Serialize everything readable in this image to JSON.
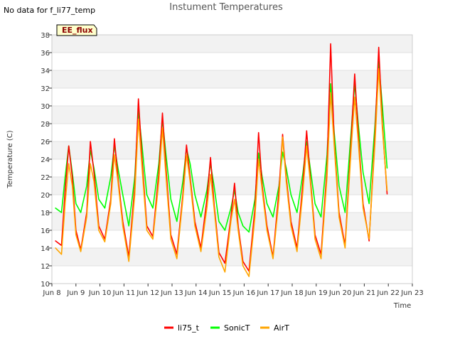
{
  "header": {
    "note": "No data for f_li77_temp"
  },
  "chart_data": {
    "type": "line",
    "title": "Instument Temperatures",
    "xlabel": "Time",
    "ylabel": "Temperature (C)",
    "ylim": [
      10,
      38
    ],
    "xlim": [
      8,
      23
    ],
    "y_ticks": [
      10,
      12,
      14,
      16,
      18,
      20,
      22,
      24,
      26,
      28,
      30,
      32,
      34,
      36,
      38
    ],
    "x_ticks": [
      {
        "value": 8,
        "label": "Jun 8"
      },
      {
        "value": 9,
        "label": "Jun 9"
      },
      {
        "value": 10,
        "label": "Jun 10"
      },
      {
        "value": 11,
        "label": "Jun 11"
      },
      {
        "value": 12,
        "label": "Jun 12"
      },
      {
        "value": 13,
        "label": "Jun 13"
      },
      {
        "value": 14,
        "label": "Jun 14"
      },
      {
        "value": 15,
        "label": "Jun 15"
      },
      {
        "value": 16,
        "label": "Jun 16"
      },
      {
        "value": 17,
        "label": "Jun 17"
      },
      {
        "value": 18,
        "label": "Jun 18"
      },
      {
        "value": 19,
        "label": "Jun 19"
      },
      {
        "value": 20,
        "label": "Jun 20"
      },
      {
        "value": 21,
        "label": "Jun 21"
      },
      {
        "value": 22,
        "label": "Jun 22"
      },
      {
        "value": 23,
        "label": "Jun 23"
      }
    ],
    "annotation": "EE_flux",
    "legend_position": "bottom-center",
    "series": [
      {
        "name": "li75_t",
        "color": "#ff0000",
        "x": [
          8.15,
          8.4,
          8.55,
          8.7,
          8.85,
          9.0,
          9.2,
          9.45,
          9.6,
          9.75,
          9.95,
          10.2,
          10.45,
          10.6,
          10.75,
          10.95,
          11.2,
          11.45,
          11.6,
          11.75,
          11.95,
          12.2,
          12.45,
          12.6,
          12.75,
          12.95,
          13.2,
          13.45,
          13.6,
          13.75,
          13.95,
          14.2,
          14.45,
          14.6,
          14.75,
          14.95,
          15.2,
          15.45,
          15.6,
          15.75,
          15.95,
          16.2,
          16.45,
          16.6,
          16.75,
          16.95,
          17.2,
          17.45,
          17.6,
          17.75,
          17.95,
          18.2,
          18.45,
          18.6,
          18.75,
          18.95,
          19.2,
          19.45,
          19.6,
          19.75,
          19.95,
          20.2,
          20.45,
          20.6,
          20.75,
          20.95,
          21.2,
          21.45,
          21.6,
          21.75,
          21.95
        ],
        "values": [
          14.8,
          14.3,
          20.5,
          25.5,
          22.0,
          16.0,
          13.8,
          18.0,
          26.0,
          22.5,
          16.5,
          15.0,
          19.5,
          26.3,
          22.0,
          17.0,
          13.0,
          21.0,
          30.8,
          24.0,
          16.5,
          15.3,
          22.5,
          29.2,
          23.0,
          15.5,
          13.3,
          20.0,
          25.6,
          22.0,
          17.0,
          14.0,
          19.5,
          24.2,
          19.0,
          13.5,
          12.3,
          17.5,
          21.3,
          16.5,
          12.5,
          11.4,
          18.5,
          27.0,
          21.0,
          16.5,
          13.0,
          20.5,
          26.8,
          22.0,
          17.0,
          14.0,
          21.5,
          27.2,
          22.0,
          15.5,
          13.3,
          23.0,
          37.0,
          26.0,
          18.0,
          14.3,
          26.0,
          33.6,
          27.0,
          19.0,
          14.8,
          27.0,
          36.6,
          28.0,
          20.1
        ]
      },
      {
        "name": "SonicT",
        "color": "#00ff00",
        "x": [
          8.15,
          8.4,
          8.55,
          8.7,
          8.85,
          9.0,
          9.2,
          9.45,
          9.6,
          9.75,
          9.95,
          10.2,
          10.45,
          10.6,
          10.75,
          10.95,
          11.2,
          11.45,
          11.6,
          11.75,
          11.95,
          12.2,
          12.45,
          12.6,
          12.75,
          12.95,
          13.2,
          13.45,
          13.6,
          13.75,
          13.95,
          14.2,
          14.45,
          14.6,
          14.75,
          14.95,
          15.2,
          15.45,
          15.6,
          15.75,
          15.95,
          16.2,
          16.45,
          16.6,
          16.75,
          16.95,
          17.2,
          17.45,
          17.6,
          17.75,
          17.95,
          18.2,
          18.45,
          18.6,
          18.75,
          18.95,
          19.2,
          19.45,
          19.6,
          19.75,
          19.95,
          20.2,
          20.45,
          20.6,
          20.75,
          20.95,
          21.2,
          21.45,
          21.6,
          21.75,
          21.95
        ],
        "values": [
          18.5,
          18.0,
          22.0,
          25.5,
          22.5,
          19.0,
          18.0,
          21.0,
          25.0,
          23.0,
          19.5,
          18.5,
          22.0,
          25.5,
          23.0,
          20.0,
          16.5,
          22.0,
          29.5,
          25.5,
          20.0,
          18.5,
          23.5,
          28.5,
          24.5,
          19.5,
          17.0,
          21.5,
          25.2,
          23.5,
          20.0,
          17.5,
          20.5,
          23.5,
          21.0,
          17.0,
          16.0,
          18.5,
          20.5,
          18.0,
          16.5,
          15.8,
          19.5,
          24.7,
          22.0,
          19.0,
          17.5,
          21.0,
          24.8,
          23.0,
          20.0,
          18.0,
          22.5,
          26.0,
          23.0,
          19.0,
          17.5,
          24.5,
          32.5,
          27.0,
          21.0,
          18.0,
          27.0,
          32.5,
          28.0,
          22.5,
          19.0,
          28.0,
          35.0,
          30.0,
          23.0
        ]
      },
      {
        "name": "AirT",
        "color": "#ffa500",
        "x": [
          8.15,
          8.4,
          8.55,
          8.7,
          8.85,
          9.0,
          9.2,
          9.45,
          9.6,
          9.75,
          9.95,
          10.2,
          10.45,
          10.6,
          10.75,
          10.95,
          11.2,
          11.45,
          11.6,
          11.75,
          11.95,
          12.2,
          12.45,
          12.6,
          12.75,
          12.95,
          13.2,
          13.45,
          13.6,
          13.75,
          13.95,
          14.2,
          14.45,
          14.6,
          14.75,
          14.95,
          15.2,
          15.45,
          15.6,
          15.75,
          15.95,
          16.2,
          16.45,
          16.6,
          16.75,
          16.95,
          17.2,
          17.45,
          17.6,
          17.75,
          17.95,
          18.2,
          18.45,
          18.6,
          18.75,
          18.95,
          19.2,
          19.45,
          19.6,
          19.75,
          19.95,
          20.2,
          20.45,
          20.6,
          20.75,
          20.95,
          21.2,
          21.45,
          21.6,
          21.75,
          21.95
        ],
        "values": [
          14.0,
          13.3,
          19.0,
          23.5,
          21.0,
          15.5,
          13.6,
          17.5,
          23.5,
          21.5,
          16.0,
          14.7,
          19.0,
          24.5,
          21.5,
          16.5,
          12.5,
          20.0,
          28.5,
          23.0,
          16.0,
          15.0,
          21.5,
          27.5,
          22.0,
          15.0,
          12.8,
          19.5,
          24.5,
          21.5,
          16.5,
          13.6,
          18.5,
          22.3,
          18.5,
          13.0,
          11.3,
          17.0,
          19.5,
          16.0,
          12.0,
          10.8,
          17.5,
          24.0,
          20.5,
          16.0,
          12.8,
          19.5,
          26.5,
          21.5,
          16.5,
          13.6,
          20.5,
          25.5,
          21.5,
          15.0,
          12.8,
          22.0,
          31.5,
          25.5,
          17.5,
          14.0,
          25.0,
          31.0,
          26.0,
          18.5,
          15.0,
          26.0,
          34.2,
          27.5,
          20.5
        ]
      }
    ]
  }
}
